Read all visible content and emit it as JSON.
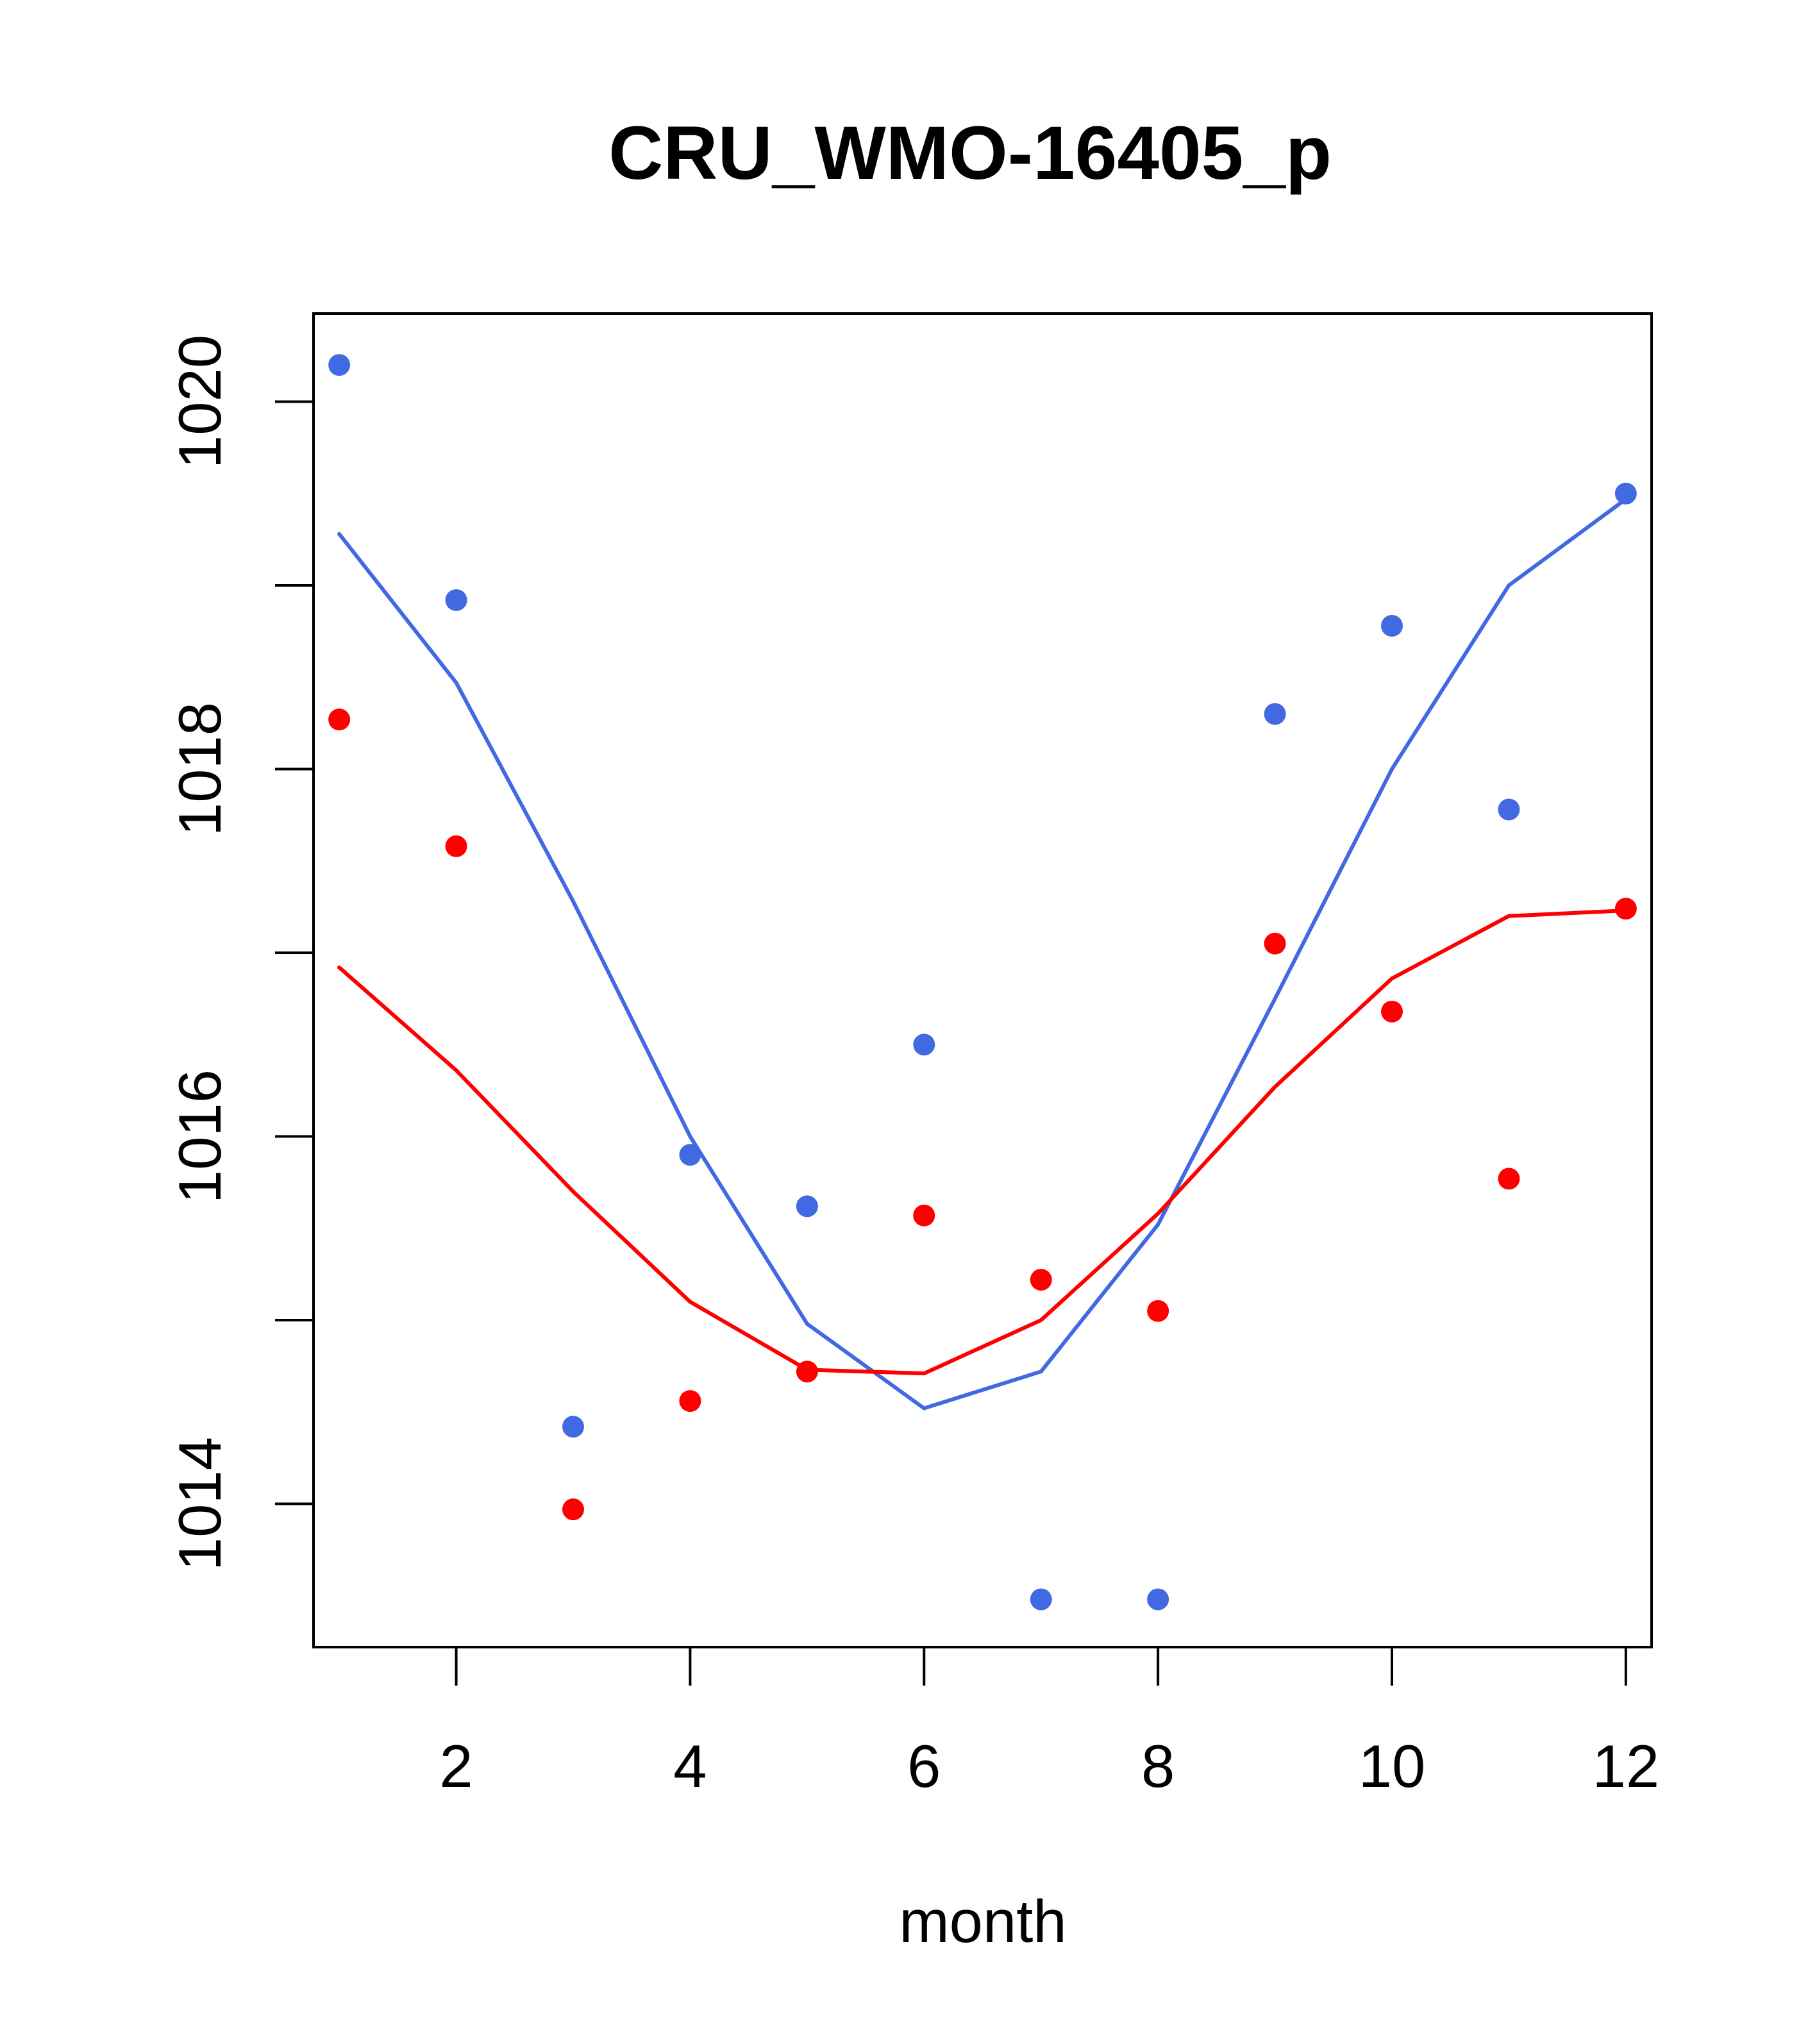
{
  "chart_data": {
    "type": "line",
    "title": "CRU_WMO-16405_p",
    "xlabel": "month",
    "ylabel": "",
    "xlim": [
      0.78,
      12.22
    ],
    "ylim": [
      1013.22,
      1020.48
    ],
    "x_ticks": [
      2,
      4,
      6,
      8,
      10,
      12
    ],
    "y_ticks": [
      1014,
      1015,
      1016,
      1017,
      1018,
      1019,
      1020
    ],
    "y_tick_labels": [
      1014,
      1016,
      1018,
      1020
    ],
    "grid": false,
    "legend": "none",
    "series": [
      {
        "name": "blue-points",
        "style": "points",
        "color": "#4169E1",
        "x": [
          1,
          2,
          3,
          4,
          5,
          6,
          7,
          8,
          9,
          10,
          11,
          12
        ],
        "values": [
          1020.2,
          1018.92,
          1014.42,
          1015.9,
          1015.62,
          1016.5,
          1013.48,
          1013.48,
          1018.3,
          1018.78,
          1017.78,
          1019.5
        ]
      },
      {
        "name": "blue-line",
        "style": "line",
        "color": "#4169E1",
        "x": [
          1,
          2,
          3,
          4,
          5,
          6,
          7,
          8,
          9,
          10,
          11,
          12
        ],
        "values": [
          1019.28,
          1018.47,
          1017.28,
          1016.0,
          1014.98,
          1014.52,
          1014.72,
          1015.52,
          1016.75,
          1018.0,
          1019.0,
          1019.47
        ]
      },
      {
        "name": "red-points",
        "style": "points",
        "color": "#FF0000",
        "x": [
          1,
          2,
          3,
          4,
          5,
          6,
          7,
          8,
          9,
          10,
          11,
          12
        ],
        "values": [
          1018.27,
          1017.58,
          1013.97,
          1014.56,
          1014.72,
          1015.57,
          1015.22,
          1015.05,
          1017.05,
          1016.68,
          1015.77,
          1017.24
        ]
      },
      {
        "name": "red-line",
        "style": "line",
        "color": "#FF0000",
        "x": [
          1,
          2,
          3,
          4,
          5,
          6,
          7,
          8,
          9,
          10,
          11,
          12
        ],
        "values": [
          1016.92,
          1016.36,
          1015.7,
          1015.1,
          1014.73,
          1014.71,
          1015.0,
          1015.58,
          1016.27,
          1016.86,
          1017.2,
          1017.23
        ]
      }
    ]
  }
}
